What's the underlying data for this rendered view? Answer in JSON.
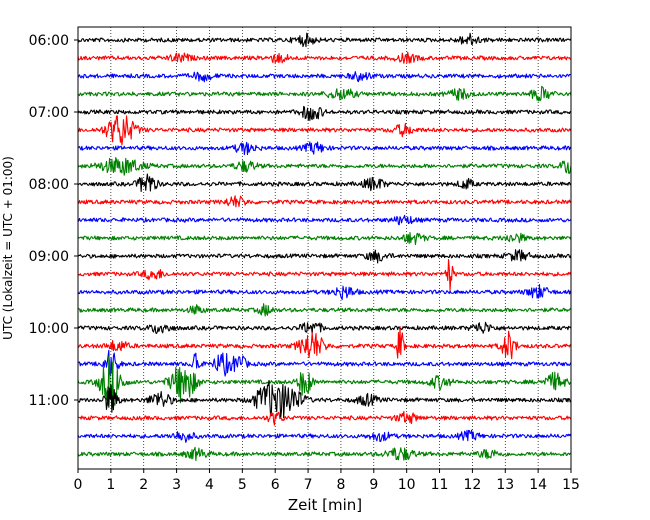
{
  "chart_data": {
    "type": "line",
    "title": "",
    "xlabel": "Zeit  [min]",
    "ylabel": "UTC (Lokalzeit = UTC + 01:00)",
    "xlim": [
      0,
      15
    ],
    "x_ticks": [
      0,
      1,
      2,
      3,
      4,
      5,
      6,
      7,
      8,
      9,
      10,
      11,
      12,
      13,
      14,
      15
    ],
    "y_tick_labels": [
      "06:00",
      "07:00",
      "08:00",
      "09:00",
      "10:00",
      "11:00"
    ],
    "trace_interval_min": 15,
    "start_time": "06:00",
    "grid": "vertical dotted at each minute",
    "color_cycle": [
      "#000000",
      "#ff0000",
      "#0000ff",
      "#008000"
    ],
    "traces": [
      {
        "start": "06:00",
        "color": "#000000"
      },
      {
        "start": "06:15",
        "color": "#ff0000"
      },
      {
        "start": "06:30",
        "color": "#0000ff"
      },
      {
        "start": "06:45",
        "color": "#008000"
      },
      {
        "start": "07:00",
        "color": "#000000"
      },
      {
        "start": "07:15",
        "color": "#ff0000"
      },
      {
        "start": "07:30",
        "color": "#0000ff"
      },
      {
        "start": "07:45",
        "color": "#008000"
      },
      {
        "start": "08:00",
        "color": "#000000"
      },
      {
        "start": "08:15",
        "color": "#ff0000"
      },
      {
        "start": "08:30",
        "color": "#0000ff"
      },
      {
        "start": "08:45",
        "color": "#008000"
      },
      {
        "start": "09:00",
        "color": "#000000"
      },
      {
        "start": "09:15",
        "color": "#ff0000"
      },
      {
        "start": "09:30",
        "color": "#0000ff"
      },
      {
        "start": "09:45",
        "color": "#008000"
      },
      {
        "start": "10:00",
        "color": "#000000"
      },
      {
        "start": "10:15",
        "color": "#ff0000"
      },
      {
        "start": "10:30",
        "color": "#0000ff"
      },
      {
        "start": "10:45",
        "color": "#008000"
      },
      {
        "start": "11:00",
        "color": "#000000"
      },
      {
        "start": "11:15",
        "color": "#ff0000"
      },
      {
        "start": "11:30",
        "color": "#0000ff"
      },
      {
        "start": "11:45",
        "color": "#008000"
      }
    ]
  }
}
